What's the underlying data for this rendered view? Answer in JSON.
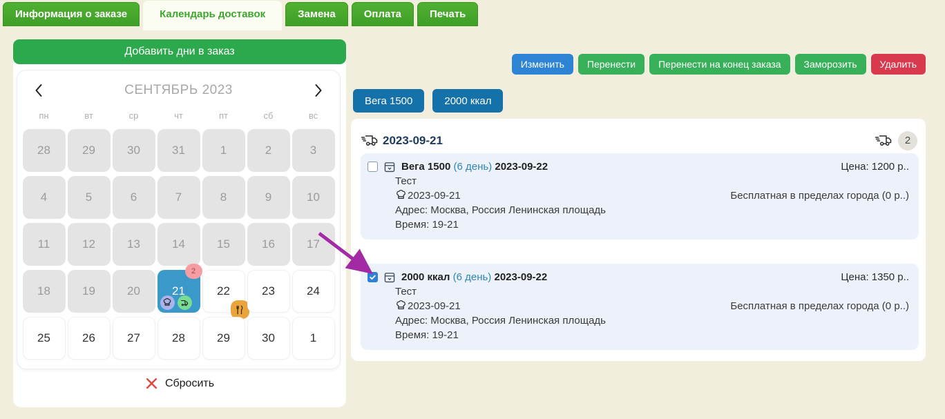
{
  "tabs": [
    {
      "label": "Информация о заказе",
      "active": false
    },
    {
      "label": "Календарь доставок",
      "active": true
    },
    {
      "label": "Замена",
      "active": false
    },
    {
      "label": "Оплата",
      "active": false
    },
    {
      "label": "Печать",
      "active": false
    }
  ],
  "calendar": {
    "add_days_button": "Добавить дни в заказ",
    "month_title": "СЕНТЯБРЬ 2023",
    "weekdays": [
      "пн",
      "вт",
      "ср",
      "чт",
      "пт",
      "сб",
      "вс"
    ],
    "days": [
      {
        "d": "28",
        "state": "disabled"
      },
      {
        "d": "29",
        "state": "disabled"
      },
      {
        "d": "30",
        "state": "disabled"
      },
      {
        "d": "31",
        "state": "disabled"
      },
      {
        "d": "1",
        "state": "disabled"
      },
      {
        "d": "2",
        "state": "disabled"
      },
      {
        "d": "3",
        "state": "disabled"
      },
      {
        "d": "4",
        "state": "disabled"
      },
      {
        "d": "5",
        "state": "disabled"
      },
      {
        "d": "6",
        "state": "disabled"
      },
      {
        "d": "7",
        "state": "disabled"
      },
      {
        "d": "8",
        "state": "disabled"
      },
      {
        "d": "9",
        "state": "disabled"
      },
      {
        "d": "10",
        "state": "disabled"
      },
      {
        "d": "11",
        "state": "disabled"
      },
      {
        "d": "12",
        "state": "disabled"
      },
      {
        "d": "13",
        "state": "disabled"
      },
      {
        "d": "14",
        "state": "disabled"
      },
      {
        "d": "15",
        "state": "disabled"
      },
      {
        "d": "16",
        "state": "disabled"
      },
      {
        "d": "17",
        "state": "disabled"
      },
      {
        "d": "18",
        "state": "disabled"
      },
      {
        "d": "19",
        "state": "disabled"
      },
      {
        "d": "20",
        "state": "disabled"
      },
      {
        "d": "21",
        "state": "selected",
        "count": "2",
        "icons": [
          "chef",
          "truck"
        ]
      },
      {
        "d": "22",
        "state": "normal",
        "meal_badge": true
      },
      {
        "d": "23",
        "state": "normal"
      },
      {
        "d": "24",
        "state": "normal"
      },
      {
        "d": "25",
        "state": "normal"
      },
      {
        "d": "26",
        "state": "normal"
      },
      {
        "d": "27",
        "state": "normal"
      },
      {
        "d": "28",
        "state": "normal"
      },
      {
        "d": "29",
        "state": "normal"
      },
      {
        "d": "30",
        "state": "normal"
      },
      {
        "d": "1",
        "state": "normal"
      }
    ],
    "reset_label": "Сбросить"
  },
  "actions": [
    {
      "label": "Изменить",
      "color": "blue"
    },
    {
      "label": "Перенести",
      "color": "green"
    },
    {
      "label": "Перенести на конец заказа",
      "color": "green"
    },
    {
      "label": "Заморозить",
      "color": "green"
    },
    {
      "label": "Удалить",
      "color": "red"
    }
  ],
  "filters": [
    {
      "label": "Вега 1500"
    },
    {
      "label": "2000 ккал"
    }
  ],
  "delivery_group": {
    "date": "2023-09-21",
    "count": "2",
    "items": [
      {
        "checked": false,
        "name": "Вега 1500",
        "day_label": "(6 день)",
        "date": "2023-09-22",
        "price": "Цена: 1200 р..",
        "note": "Тест",
        "kitchen_date": "2023-09-21",
        "delivery_cost": "Бесплатная в пределах города (0 р..)",
        "address": "Адрес: Москва, Россия Ленинская площадь",
        "time": "Время: 19-21"
      },
      {
        "checked": true,
        "name": "2000 ккал",
        "day_label": "(6 день)",
        "date": "2023-09-22",
        "price": "Цена: 1350 р..",
        "note": "Тест",
        "kitchen_date": "2023-09-21",
        "delivery_cost": "Бесплатная в пределах города (0 р..)",
        "address": "Адрес: Москва, Россия Ленинская площадь",
        "time": "Время: 19-21"
      }
    ]
  },
  "colors": {
    "page_bg": "#f1eede",
    "tab_green": "#45a82c",
    "accent_green": "#2ca94c",
    "action_green": "#38b05a",
    "primary_blue": "#2d84d4",
    "pill_blue": "#1571aa",
    "danger_red": "#d9394d",
    "selected_day_blue": "#3a99c9",
    "day_badge_pink": "#f59da2",
    "chef_bubble": "#aab3ea",
    "truck_bubble": "#79dc95",
    "meal_badge_orange": "#eaa43c",
    "card_bg": "#edf2fa",
    "header_navy": "#1c3c5e",
    "arrow_purple": "#a32aa5"
  }
}
